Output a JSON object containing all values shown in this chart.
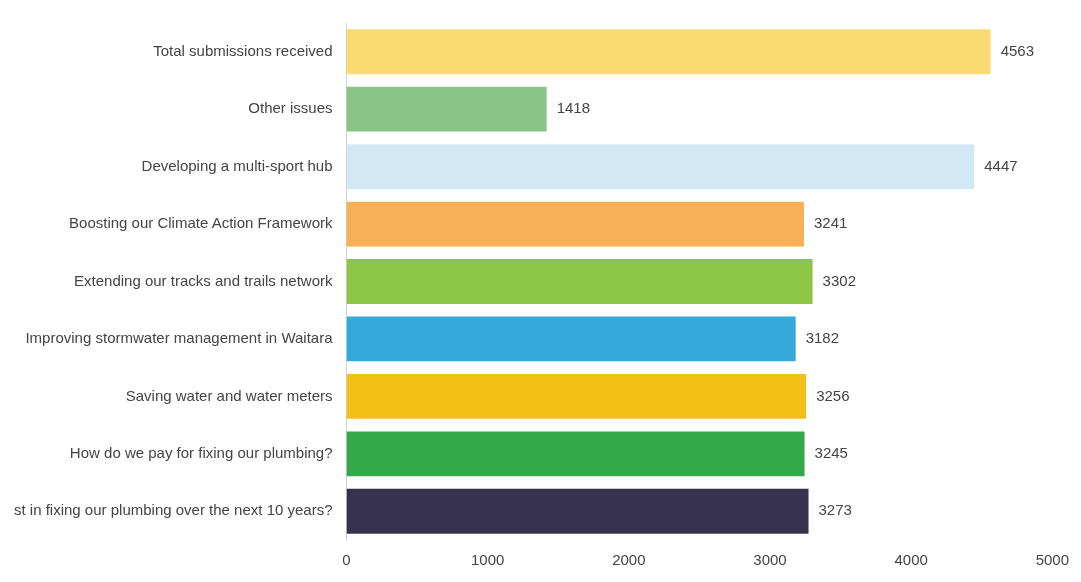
{
  "chart_data": {
    "type": "bar",
    "orientation": "horizontal",
    "categories": [
      "Total submissions received",
      "Other issues",
      "Developing a multi-sport hub",
      "Boosting our Climate Action Framework",
      "Extending our tracks and trails network",
      "Improving stormwater management in Waitara",
      "Saving water and water meters",
      "How do we pay for fixing our plumbing?",
      "st in fixing our plumbing over the next 10 years?"
    ],
    "values": [
      4563,
      1418,
      4447,
      3241,
      3302,
      3182,
      3256,
      3245,
      3273
    ],
    "colors": [
      "#f9db72",
      "#88c487",
      "#d3e8f5",
      "#f7b055",
      "#8dc646",
      "#35a9dc",
      "#f4c018",
      "#35a94a",
      "#37334f"
    ],
    "xlim": [
      0,
      5000
    ],
    "xticks": [
      0,
      1000,
      2000,
      3000,
      4000,
      5000
    ],
    "grid": false,
    "legend": false,
    "data_labels": true
  }
}
